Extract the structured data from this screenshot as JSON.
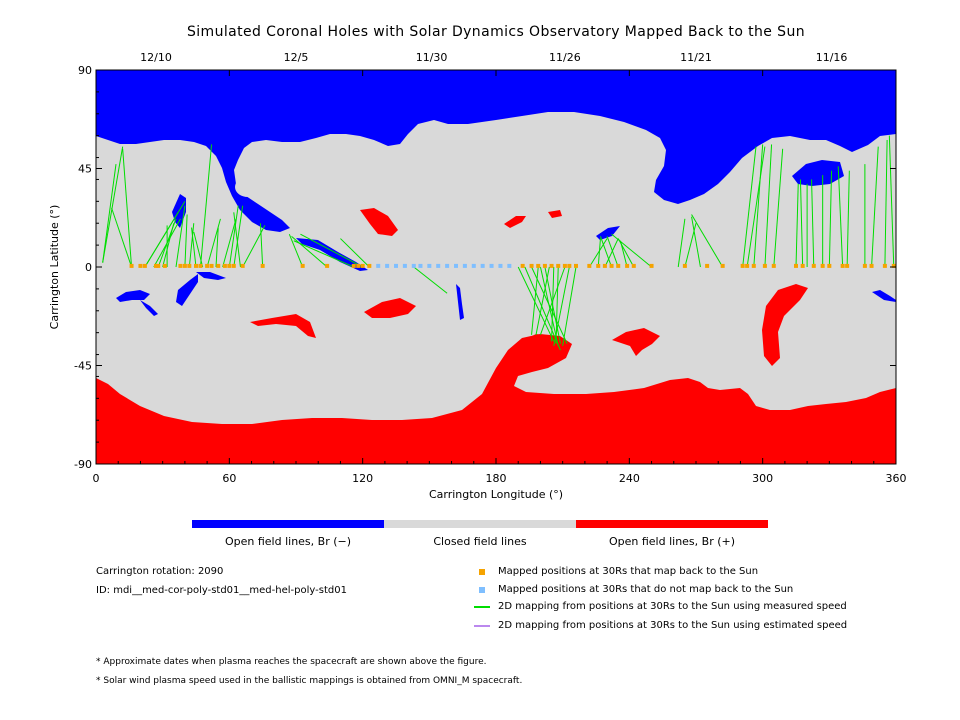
{
  "chart_data": {
    "type": "map",
    "title": "Simulated Coronal Holes with Solar Dynamics Observatory Mapped Back to the Sun",
    "xlabel": "Carrington Longitude (°)",
    "ylabel": "Carrington Latitude (°)",
    "xlim": [
      0,
      360
    ],
    "ylim": [
      -90,
      90
    ],
    "x_ticks": [
      0,
      60,
      120,
      180,
      240,
      300,
      360
    ],
    "y_ticks": [
      90,
      45,
      0,
      -45,
      -90
    ],
    "y_tick_labels": [
      "90",
      "45",
      "0",
      "-45",
      "-90"
    ],
    "top_axis_dates": [
      {
        "label": "12/10",
        "lon": 27
      },
      {
        "label": "12/5",
        "lon": 90
      },
      {
        "label": "11/30",
        "lon": 151
      },
      {
        "label": "11/26",
        "lon": 211
      },
      {
        "label": "11/21",
        "lon": 270
      },
      {
        "label": "11/16",
        "lon": 331
      }
    ],
    "colors": {
      "open_negative": "#0000ff",
      "closed": "#d9d9d9",
      "open_positive": "#ff0000",
      "mapped": "#f5a300",
      "unmapped": "#7fbfff",
      "measured_line": "#00dd00",
      "estimated_line": "#bb88ee"
    },
    "colorbar": [
      {
        "label": "Open field lines, Br (−)",
        "color": "#0000ff"
      },
      {
        "label": "Closed field lines",
        "color": "#d9d9d9"
      },
      {
        "label": "Open field lines, Br (+)",
        "color": "#ff0000"
      }
    ],
    "mapped_positions_30Rs": {
      "lat": 0.5,
      "lons": [
        16,
        20,
        22,
        27,
        28,
        31,
        38,
        40,
        42,
        45,
        47,
        50,
        52,
        55,
        58,
        60,
        62,
        66,
        75,
        93,
        104,
        116,
        118,
        120,
        123,
        192,
        196,
        199,
        202,
        205,
        208,
        211,
        213,
        216,
        222,
        226,
        229,
        232,
        235,
        239,
        242,
        250,
        265,
        275,
        282,
        291,
        293,
        296,
        301,
        305,
        315,
        318,
        323,
        327,
        330,
        336,
        338,
        346,
        349,
        355,
        359
      ]
    },
    "unmapped_positions_30Rs": {
      "lat": 0.5,
      "lons": [
        127,
        131,
        135,
        139,
        143,
        146,
        150,
        154,
        158,
        162,
        166,
        170,
        174,
        178,
        182,
        186
      ]
    },
    "mapping_lines_measured": [
      [
        3,
        2,
        12,
        55
      ],
      [
        3,
        2,
        9,
        47
      ],
      [
        16,
        0,
        12,
        54
      ],
      [
        16,
        0,
        7,
        27
      ],
      [
        22,
        0,
        40,
        30
      ],
      [
        22,
        0,
        37,
        25
      ],
      [
        26,
        0,
        38,
        22
      ],
      [
        28,
        0,
        36,
        22
      ],
      [
        30,
        0,
        35,
        20
      ],
      [
        32,
        0,
        32,
        19
      ],
      [
        36,
        0,
        40,
        28
      ],
      [
        40,
        0,
        41,
        24
      ],
      [
        42,
        0,
        44,
        20
      ],
      [
        45,
        0,
        43,
        18
      ],
      [
        48,
        0,
        44,
        16
      ],
      [
        47,
        0,
        52,
        56
      ],
      [
        50,
        0,
        56,
        22
      ],
      [
        54,
        0,
        55,
        18
      ],
      [
        57,
        0,
        63,
        22
      ],
      [
        60,
        0,
        64,
        28
      ],
      [
        62,
        0,
        66,
        28
      ],
      [
        65,
        0,
        62,
        25
      ],
      [
        66,
        0,
        76,
        19
      ],
      [
        75,
        0,
        74,
        20
      ],
      [
        93,
        0,
        87,
        15
      ],
      [
        104,
        0,
        88,
        14
      ],
      [
        116,
        0,
        89,
        12
      ],
      [
        120,
        0,
        92,
        15
      ],
      [
        123,
        0,
        110,
        13
      ],
      [
        143,
        0,
        158,
        -12
      ],
      [
        190,
        0,
        206,
        -34
      ],
      [
        193,
        0,
        209,
        -38
      ],
      [
        196,
        0,
        212,
        -35
      ],
      [
        199,
        0,
        196,
        -31
      ],
      [
        200,
        0,
        208,
        -36
      ],
      [
        202,
        0,
        209,
        -35
      ],
      [
        204,
        0,
        198,
        -31
      ],
      [
        206,
        0,
        205,
        -34
      ],
      [
        208,
        0,
        207,
        -35
      ],
      [
        211,
        0,
        200,
        -31
      ],
      [
        213,
        0,
        206,
        -36
      ],
      [
        216,
        0,
        210,
        -36
      ],
      [
        222,
        0,
        230,
        13
      ],
      [
        226,
        0,
        227,
        13
      ],
      [
        229,
        0,
        235,
        13
      ],
      [
        232,
        0,
        227,
        14
      ],
      [
        235,
        0,
        230,
        14
      ],
      [
        239,
        0,
        236,
        12
      ],
      [
        242,
        0,
        235,
        13
      ],
      [
        250,
        0,
        232,
        15
      ],
      [
        262,
        0,
        265,
        22
      ],
      [
        265,
        0,
        270,
        20
      ],
      [
        272,
        0,
        268,
        23
      ],
      [
        282,
        0,
        268,
        24
      ],
      [
        291,
        0,
        297,
        55
      ],
      [
        293,
        0,
        301,
        55
      ],
      [
        296,
        0,
        300,
        56
      ],
      [
        301,
        0,
        304,
        56
      ],
      [
        305,
        0,
        309,
        54
      ],
      [
        315,
        0,
        316,
        38
      ],
      [
        318,
        0,
        317,
        40
      ],
      [
        320,
        0,
        320,
        38
      ],
      [
        323,
        0,
        322,
        40
      ],
      [
        327,
        0,
        327,
        42
      ],
      [
        330,
        0,
        331,
        44
      ],
      [
        336,
        0,
        334,
        46
      ],
      [
        338,
        0,
        339,
        44
      ],
      [
        346,
        0,
        346,
        47
      ],
      [
        349,
        0,
        352,
        55
      ],
      [
        355,
        0,
        356,
        58
      ],
      [
        359,
        0,
        357,
        60
      ]
    ],
    "legend": [
      {
        "label": "Mapped positions at 30Rs that map back to the Sun",
        "marker": "square",
        "color": "#f5a300"
      },
      {
        "label": "Mapped positions at 30Rs that do not map back to the Sun",
        "marker": "square",
        "color": "#7fbfff"
      },
      {
        "label": "2D mapping from positions at 30Rs to the Sun using measured speed",
        "marker": "line",
        "color": "#00dd00"
      },
      {
        "label": "2D mapping from positions at 30Rs to the Sun using estimated speed",
        "marker": "line",
        "color": "#bb88ee"
      }
    ]
  },
  "info": {
    "rotation": "Carrington rotation: 2090",
    "id": "ID: mdi__med-cor-poly-std01__med-hel-poly-std01"
  },
  "footnotes": [
    "* Approximate dates when plasma reaches the spacecraft are shown above the figure.",
    "* Solar wind plasma speed used in the ballistic mappings is obtained from OMNI_M spacecraft."
  ]
}
